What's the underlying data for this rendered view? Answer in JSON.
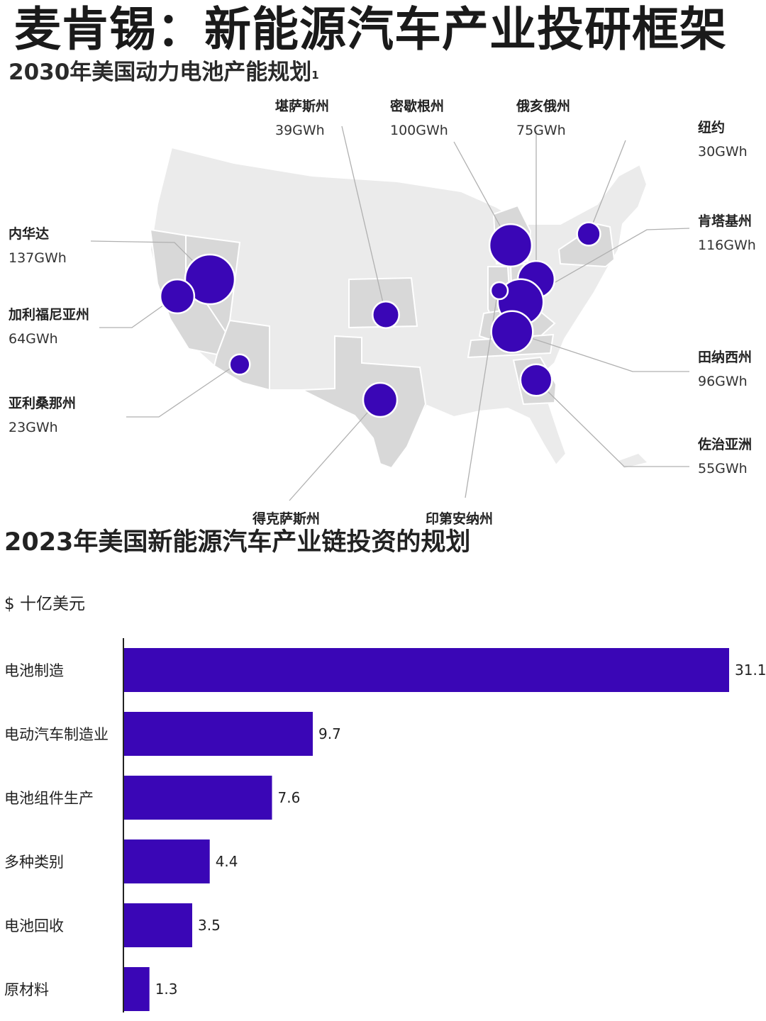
{
  "page_title": "麦肯锡：新能源汽车产业投研框架",
  "map_section": {
    "title": "2030年美国动力电池产能规划",
    "footnote_mark": "1",
    "bubble_color": "#3a06b6",
    "states": [
      {
        "name": "堪萨斯州",
        "value": "39GWh",
        "gwh": 39
      },
      {
        "name": "密歇根州",
        "value": "100GWh",
        "gwh": 100
      },
      {
        "name": "俄亥俄州",
        "value": "75GWh",
        "gwh": 75
      },
      {
        "name": "纽约",
        "value": "30GWh",
        "gwh": 30
      },
      {
        "name": "肯塔基州",
        "value": "116GWh",
        "gwh": 116
      },
      {
        "name": "内华达",
        "value": "137GWh",
        "gwh": 137
      },
      {
        "name": "加利福尼亚州",
        "value": "64GWh",
        "gwh": 64
      },
      {
        "name": "亚利桑那州",
        "value": "23GWh",
        "gwh": 23
      },
      {
        "name": "田纳西州",
        "value": "96GWh",
        "gwh": 96
      },
      {
        "name": "佐治亚洲",
        "value": "55GWh",
        "gwh": 55
      },
      {
        "name": "得克萨斯州",
        "value": "",
        "gwh": null
      },
      {
        "name": "印第安纳州",
        "value": "",
        "gwh": null
      }
    ]
  },
  "chart_data": {
    "type": "bar",
    "orientation": "horizontal",
    "title": "2023年美国新能源汽车产业链投资的规划",
    "unit": "$ 十亿美元",
    "categories": [
      "电池制造",
      "电动汽车制造业",
      "电池组件生产",
      "多种类别",
      "电池回收",
      "原材料"
    ],
    "values": [
      31.1,
      9.7,
      7.6,
      4.4,
      3.5,
      1.3
    ],
    "bar_color": "#3a06b6",
    "xlim": [
      0,
      31.1
    ],
    "grid": false,
    "legend": "none"
  }
}
